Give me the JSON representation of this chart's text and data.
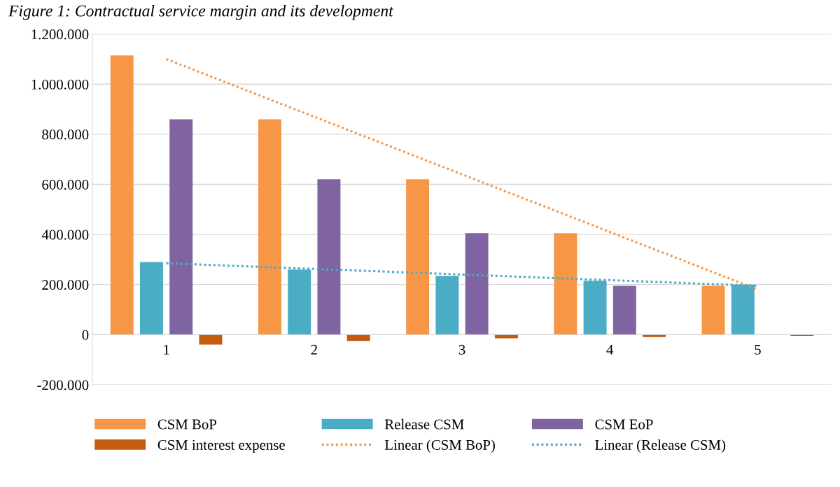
{
  "chart_data": {
    "type": "bar",
    "title": "Figure 1: Contractual service margin and its development",
    "categories": [
      "1",
      "2",
      "3",
      "4",
      "5"
    ],
    "series": [
      {
        "name": "CSM BoP",
        "color": "#f79646",
        "values": [
          1115000,
          860000,
          620000,
          405000,
          195000
        ]
      },
      {
        "name": "Release CSM",
        "color": "#4bacc6",
        "values": [
          290000,
          260000,
          235000,
          215000,
          200000
        ]
      },
      {
        "name": "CSM EoP",
        "color": "#8064a2",
        "values": [
          860000,
          620000,
          405000,
          195000,
          0
        ]
      },
      {
        "name": "CSM interest expense",
        "color": "#c55a11",
        "values": [
          -40000,
          -25000,
          -15000,
          -10000,
          -5000
        ]
      },
      {
        "name": "Linear (CSM BoP)",
        "type": "line",
        "color": "#f79646",
        "line_style": "dotted",
        "x": [
          "1",
          "5"
        ],
        "values": [
          1100000,
          180000
        ]
      },
      {
        "name": "Linear (Release CSM)",
        "type": "line",
        "color": "#4bacc6",
        "line_style": "dotted",
        "x": [
          "1",
          "5"
        ],
        "values": [
          285000,
          195000
        ]
      }
    ],
    "ylim": [
      -200000,
      1200000
    ],
    "yticks": [
      {
        "value": -200000,
        "label": "-200.000"
      },
      {
        "value": 0,
        "label": "0"
      },
      {
        "value": 200000,
        "label": "200.000"
      },
      {
        "value": 400000,
        "label": "400.000"
      },
      {
        "value": 600000,
        "label": "600.000"
      },
      {
        "value": 800000,
        "label": "800.000"
      },
      {
        "value": 1000000,
        "label": "1.000.000"
      },
      {
        "value": 1200000,
        "label": "1.200.000"
      }
    ],
    "grid": "y",
    "legend": "bottom"
  }
}
